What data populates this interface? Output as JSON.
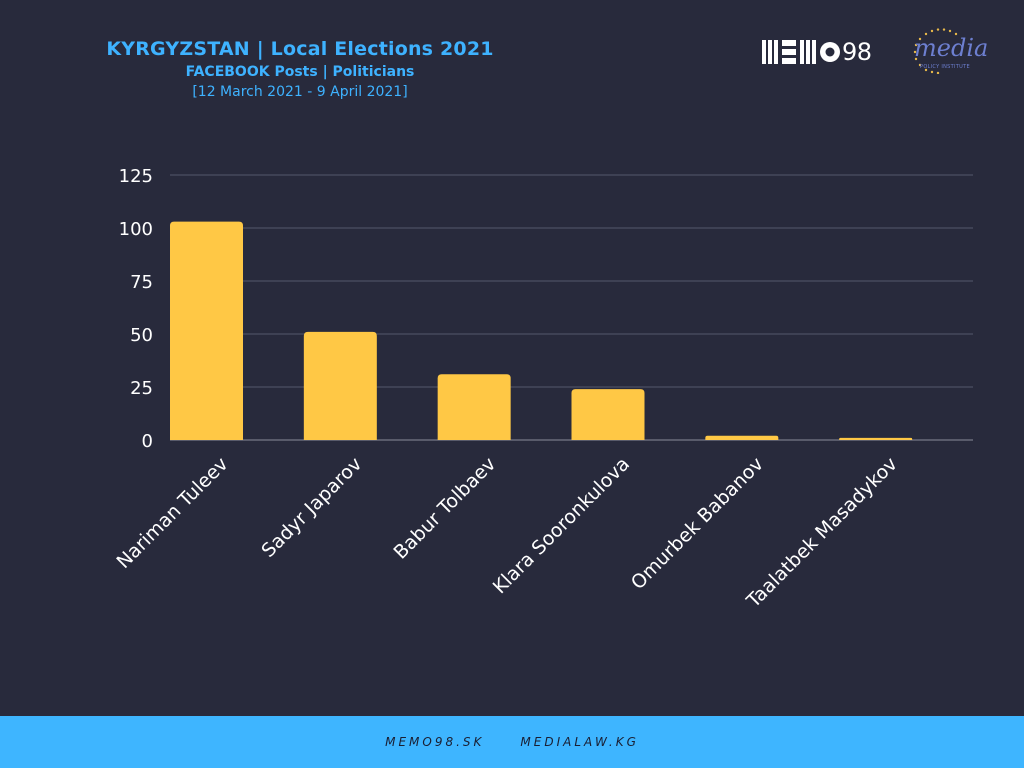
{
  "header": {
    "title": "KYRGYZSTAN | Local Elections 2021",
    "subtitle": "FACEBOOK Posts | Politicians",
    "date_range": "[12 March 2021 - 9 April 2021]"
  },
  "logos": {
    "memo_text": "98",
    "media_text": "media",
    "media_sub": "POLICY INSTITUTE"
  },
  "footer": {
    "links": [
      "MEMO98.SK",
      "MEDIALAW.KG"
    ]
  },
  "colors": {
    "background": "#282a3c",
    "bar": "#ffc845",
    "accent": "#3eb2ff",
    "footer": "#3eb5ff"
  },
  "chart_data": {
    "type": "bar",
    "categories": [
      "Nariman Tuleev",
      "Sadyr Japarov",
      "Babur Tolbaev",
      "Klara Sooronkulova",
      "Omurbek Babanov",
      "Taalatbek Masadykov"
    ],
    "values": [
      103,
      51,
      31,
      24,
      2,
      1
    ],
    "yticks": [
      0,
      25,
      50,
      75,
      100,
      125
    ],
    "ylim": [
      0,
      125
    ],
    "grid": true,
    "legend": false
  }
}
